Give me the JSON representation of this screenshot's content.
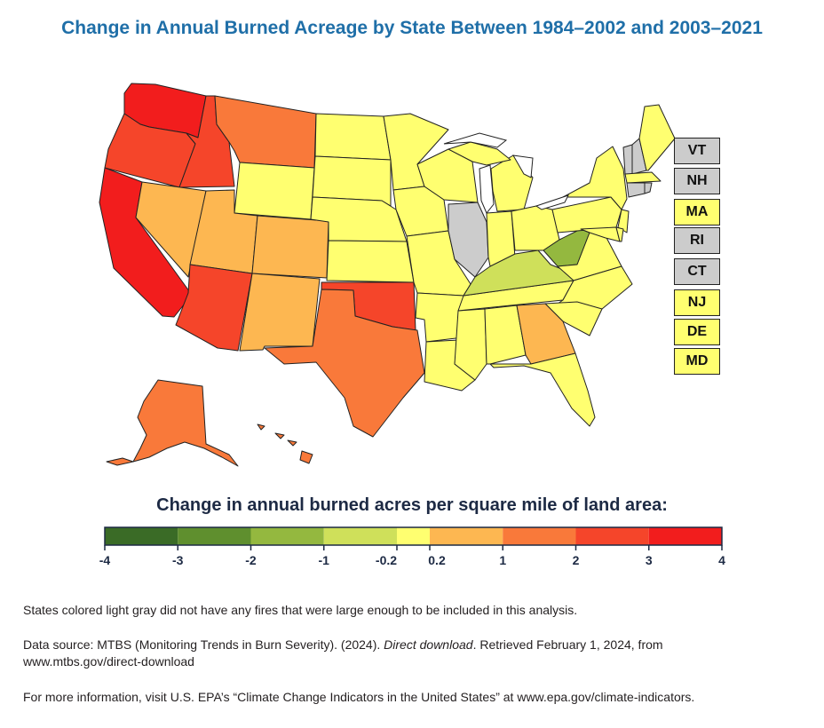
{
  "title": "Change in Annual Burned Acreage by State Between 1984–2002 and 2003–2021",
  "legend": {
    "title": "Change in annual burned acres per square mile of land area:",
    "bins": [
      {
        "from": -4,
        "to": -3,
        "color": "#3a6b26"
      },
      {
        "from": -3,
        "to": -2,
        "color": "#5f8f2e"
      },
      {
        "from": -2,
        "to": -1,
        "color": "#94b83f"
      },
      {
        "from": -1,
        "to": -0.2,
        "color": "#cfe05a"
      },
      {
        "from": -0.2,
        "to": 0.2,
        "color": "#ffff70"
      },
      {
        "from": 0.2,
        "to": 1,
        "color": "#fdb751"
      },
      {
        "from": 1,
        "to": 2,
        "color": "#f9793a"
      },
      {
        "from": 2,
        "to": 3,
        "color": "#f5452a"
      },
      {
        "from": 3,
        "to": 4,
        "color": "#f21d1d"
      }
    ],
    "tick_labels": [
      "-4",
      "-3",
      "-2",
      "-1",
      "-0.2",
      "0.2",
      "1",
      "2",
      "3",
      "4"
    ]
  },
  "colors": {
    "very_high": "#f21d1d",
    "high": "#f5452a",
    "mid_high": "#f9793a",
    "low_increase": "#fdb751",
    "no_change": "#ffff70",
    "low_decrease": "#cfe05a",
    "mid_decrease": "#94b83f",
    "no_data": "#cccccc"
  },
  "small_states": [
    {
      "abbr": "VT",
      "category": "no_data"
    },
    {
      "abbr": "NH",
      "category": "no_data"
    },
    {
      "abbr": "MA",
      "category": "no_change"
    },
    {
      "abbr": "RI",
      "category": "no_data"
    },
    {
      "abbr": "CT",
      "category": "no_data"
    },
    {
      "abbr": "NJ",
      "category": "no_change"
    },
    {
      "abbr": "DE",
      "category": "no_change"
    },
    {
      "abbr": "MD",
      "category": "no_change"
    }
  ],
  "notes": {
    "gray_note": "States colored light gray did not have any fires that were large enough to be included in this analysis.",
    "source_prefix": "Data source: MTBS (Monitoring Trends in Burn Severity). (2024). ",
    "source_italic": "Direct download",
    "source_suffix": ". Retrieved February 1, 2024, from",
    "source_url": "www.mtbs.gov/direct-download",
    "more_info": "For more information, visit U.S. EPA’s “Climate Change Indicators in the United States” at www.epa.gov/climate-indicators."
  }
}
